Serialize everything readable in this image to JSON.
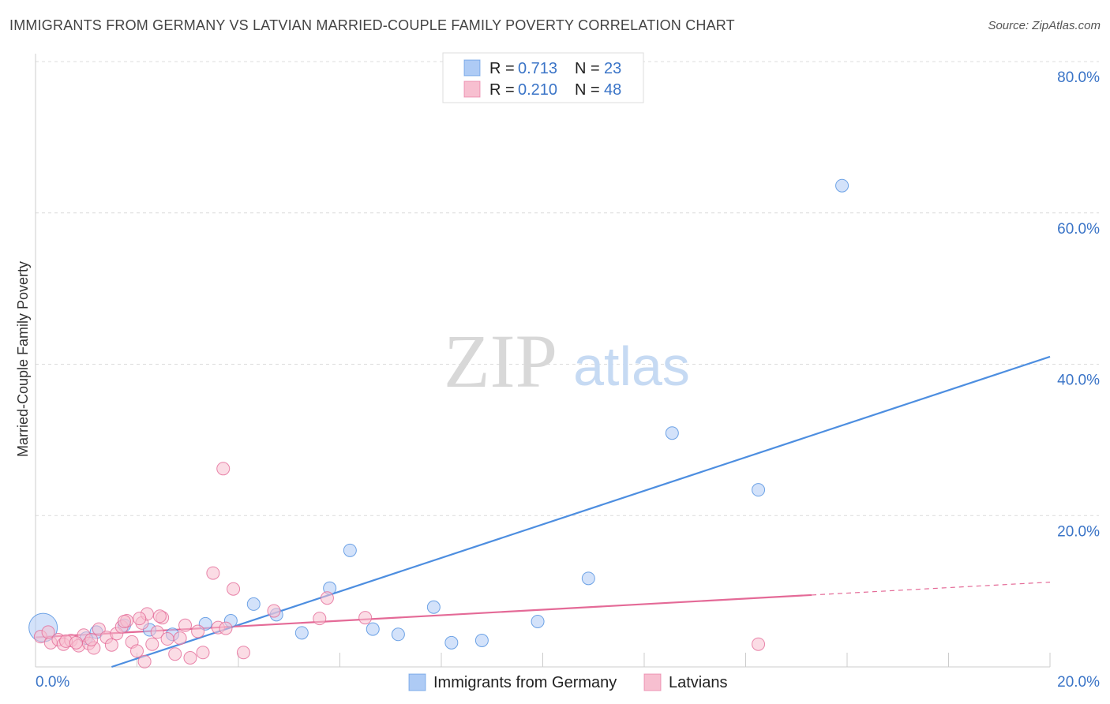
{
  "header": {
    "title": "IMMIGRANTS FROM GERMANY VS LATVIAN MARRIED-COUPLE FAMILY POVERTY CORRELATION CHART",
    "source": "Source: ZipAtlas.com"
  },
  "watermark": {
    "zip": "ZIP",
    "atlas": "atlas"
  },
  "legend": {
    "rows": [
      {
        "r_label": "R =",
        "r_value": "0.713",
        "n_label": "N =",
        "n_value": "23",
        "color": "#aecbf5"
      },
      {
        "r_label": "R =",
        "r_value": "0.210",
        "n_label": "N =",
        "n_value": "48",
        "color": "#f7bfd0"
      }
    ]
  },
  "bottom_legend": {
    "items": [
      {
        "label": "Immigrants from Germany",
        "color": "#aecbf5"
      },
      {
        "label": "Latvians",
        "color": "#f7bfd0"
      }
    ]
  },
  "chart_data": {
    "type": "scatter",
    "title": "IMMIGRANTS FROM GERMANY VS LATVIAN MARRIED-COUPLE FAMILY POVERTY CORRELATION CHART",
    "xlabel": "",
    "ylabel": "Married-Couple Family Poverty",
    "xlim": [
      0,
      20
    ],
    "ylim": [
      0,
      80
    ],
    "x_tick_labels": [
      "0.0%",
      "20.0%"
    ],
    "y_tick_labels": [
      "20.0%",
      "40.0%",
      "60.0%",
      "80.0%"
    ],
    "y_ticks": [
      20,
      40,
      60,
      80
    ],
    "grid": true,
    "legend_position": "top-center",
    "series": [
      {
        "name": "Immigrants from Germany",
        "color": "#4d8ee0",
        "fill": "#aecbf5",
        "points": [
          [
            0.15,
            5.2
          ],
          [
            1.2,
            4.6
          ],
          [
            1.75,
            5.5
          ],
          [
            2.25,
            4.9
          ],
          [
            2.7,
            4.3
          ],
          [
            3.35,
            5.7
          ],
          [
            3.85,
            6.1
          ],
          [
            4.3,
            8.3
          ],
          [
            4.75,
            6.9
          ],
          [
            5.25,
            4.5
          ],
          [
            5.8,
            10.4
          ],
          [
            6.2,
            15.4
          ],
          [
            6.65,
            5.0
          ],
          [
            7.15,
            4.3
          ],
          [
            7.85,
            7.9
          ],
          [
            8.2,
            3.2
          ],
          [
            8.8,
            3.5
          ],
          [
            9.9,
            6.0
          ],
          [
            10.9,
            11.7
          ],
          [
            12.55,
            30.9
          ],
          [
            14.25,
            23.4
          ],
          [
            15.9,
            63.6
          ],
          [
            1.0,
            3.8
          ]
        ],
        "trend": {
          "x": [
            1.5,
            20
          ],
          "y": [
            0,
            41
          ]
        }
      },
      {
        "name": "Latvians",
        "color": "#e46a97",
        "fill": "#f7bfd0",
        "points": [
          [
            0.1,
            4.0
          ],
          [
            0.3,
            3.2
          ],
          [
            0.45,
            3.6
          ],
          [
            0.55,
            3.0
          ],
          [
            0.7,
            3.5
          ],
          [
            0.85,
            2.8
          ],
          [
            0.95,
            4.2
          ],
          [
            1.05,
            3.1
          ],
          [
            1.15,
            2.5
          ],
          [
            1.25,
            5.0
          ],
          [
            1.4,
            3.9
          ],
          [
            1.5,
            2.9
          ],
          [
            1.6,
            4.4
          ],
          [
            1.7,
            5.3
          ],
          [
            1.8,
            6.1
          ],
          [
            1.9,
            3.3
          ],
          [
            2.0,
            2.1
          ],
          [
            2.1,
            5.8
          ],
          [
            2.2,
            7.0
          ],
          [
            2.3,
            3.0
          ],
          [
            2.4,
            4.6
          ],
          [
            2.5,
            6.5
          ],
          [
            2.6,
            3.7
          ],
          [
            2.15,
            0.7
          ],
          [
            2.75,
            1.7
          ],
          [
            2.95,
            5.5
          ],
          [
            3.05,
            1.2
          ],
          [
            3.2,
            4.7
          ],
          [
            3.3,
            1.9
          ],
          [
            3.5,
            12.4
          ],
          [
            3.6,
            5.2
          ],
          [
            3.7,
            26.2
          ],
          [
            3.9,
            10.3
          ],
          [
            4.1,
            1.9
          ],
          [
            4.7,
            7.4
          ],
          [
            5.6,
            6.4
          ],
          [
            5.75,
            9.1
          ],
          [
            6.5,
            6.5
          ],
          [
            14.25,
            3.0
          ],
          [
            0.25,
            4.6
          ],
          [
            1.75,
            6.0
          ],
          [
            2.45,
            6.7
          ],
          [
            2.85,
            3.8
          ],
          [
            3.75,
            5.1
          ],
          [
            0.6,
            3.4
          ],
          [
            1.1,
            3.6
          ],
          [
            0.8,
            3.2
          ],
          [
            2.05,
            6.4
          ]
        ],
        "trend": {
          "x": [
            0,
            15.3
          ],
          "y": [
            3.9,
            9.5
          ]
        },
        "trend_dashed": {
          "x": [
            15.3,
            20
          ],
          "y": [
            9.5,
            11.2
          ]
        }
      }
    ]
  }
}
